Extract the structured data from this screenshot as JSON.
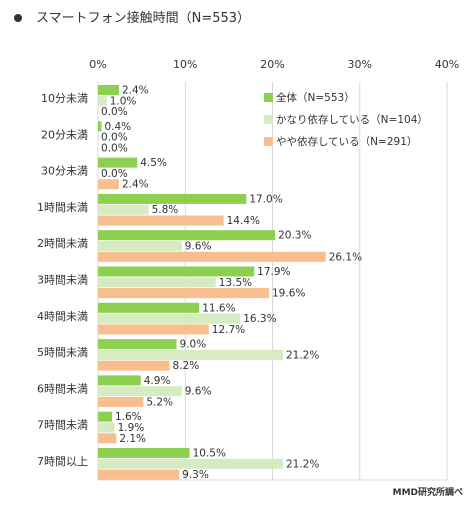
{
  "chart_data": {
    "type": "bar",
    "orientation": "horizontal",
    "title": "スマートフォン接触時間（N=553）",
    "source": "MMD研究所調べ",
    "categories": [
      "10分未満",
      "20分未満",
      "30分未満",
      "1時間未満",
      "2時間未満",
      "3時間未満",
      "4時間未満",
      "5時間未満",
      "6時間未満",
      "7時間未満",
      "7時間以上"
    ],
    "xlim": [
      0,
      40
    ],
    "ticks": [
      "0%",
      "10%",
      "20%",
      "30%",
      "40%"
    ],
    "tick_values": [
      0,
      10,
      20,
      30,
      40
    ],
    "grid": true,
    "legend_position": "top-right",
    "series": [
      {
        "name": "全体（N=553）",
        "color": "#8dd050",
        "values": [
          2.4,
          0.4,
          4.5,
          17.0,
          20.3,
          17.9,
          11.6,
          9.0,
          4.9,
          1.6,
          10.5
        ],
        "labels": [
          "2.4%",
          "0.4%",
          "4.5%",
          "17.0%",
          "20.3%",
          "17.9%",
          "11.6%",
          "9.0%",
          "4.9%",
          "1.6%",
          "10.5%"
        ]
      },
      {
        "name": "かなり依存している（N=104）",
        "color": "#d6ebc2",
        "values": [
          1.0,
          0.0,
          0.0,
          5.8,
          9.6,
          13.5,
          16.3,
          21.2,
          9.6,
          1.9,
          21.2
        ],
        "labels": [
          "1.0%",
          "0.0%",
          "0.0%",
          "5.8%",
          "9.6%",
          "13.5%",
          "16.3%",
          "21.2%",
          "9.6%",
          "1.9%",
          "21.2%"
        ]
      },
      {
        "name": "やや依存している（N=291）",
        "color": "#f7bf8e",
        "values": [
          0.0,
          0.0,
          2.4,
          14.4,
          26.1,
          19.6,
          12.7,
          8.2,
          5.2,
          2.1,
          9.3
        ],
        "labels": [
          "0.0%",
          "0.0%",
          "2.4%",
          "14.4%",
          "26.1%",
          "19.6%",
          "12.7%",
          "8.2%",
          "5.2%",
          "2.1%",
          "9.3%"
        ]
      }
    ]
  }
}
